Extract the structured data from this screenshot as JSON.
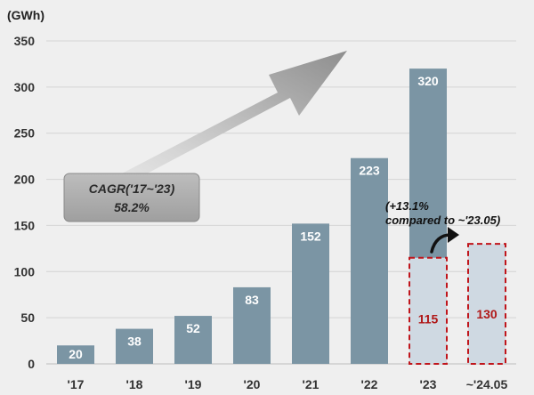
{
  "chart_data": {
    "type": "bar",
    "unit": "(GWh)",
    "categories": [
      "'17",
      "'18",
      "'19",
      "'20",
      "'21",
      "'22",
      "'23",
      "~'24.05"
    ],
    "values": [
      20,
      38,
      52,
      83,
      152,
      223,
      320,
      null
    ],
    "value_labels": [
      "20",
      "38",
      "52",
      "83",
      "152",
      "223",
      "320",
      ""
    ],
    "highlight": [
      {
        "category": "'23",
        "value": 115,
        "label": "115"
      },
      {
        "category": "~'24.05",
        "value": 130,
        "label": "130"
      }
    ],
    "ylim": [
      0,
      350
    ],
    "yticks": [
      0,
      50,
      100,
      150,
      200,
      250,
      300,
      350
    ],
    "grid": true,
    "annotation_cagr": [
      "CAGR('17~'23)",
      "58.2%"
    ],
    "annotation_growth": [
      "(+13.1%",
      "compared to ~'23.05)"
    ],
    "colors": {
      "bar": "#7b95a4",
      "highlight_fill": "#cfd9e2",
      "highlight_border": "#c0151b",
      "highlight_text": "#b01818",
      "grid": "#d4d4d4",
      "background": "#efefef"
    }
  }
}
